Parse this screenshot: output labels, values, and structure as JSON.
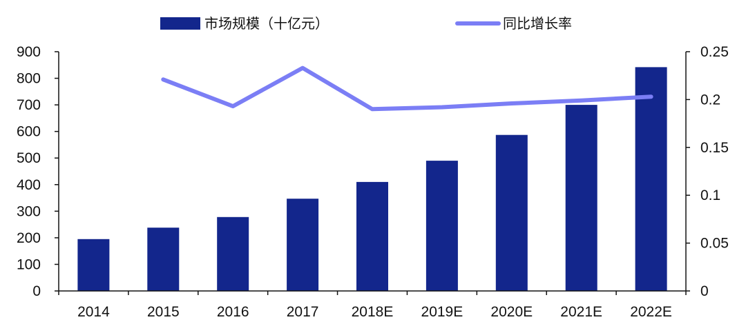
{
  "chart_data": {
    "type": "bar",
    "title": "",
    "xlabel": "",
    "ylabel": "",
    "categories": [
      "2014",
      "2015",
      "2016",
      "2017",
      "2018E",
      "2019E",
      "2020E",
      "2021E",
      "2022E"
    ],
    "series": [
      {
        "name": "市场规模（十亿元）",
        "type": "bar",
        "axis": "left",
        "color": "#13268c",
        "values": [
          195,
          238,
          278,
          347,
          410,
          490,
          587,
          700,
          842
        ]
      },
      {
        "name": "同比增长率",
        "type": "line",
        "axis": "right",
        "color": "#7b7ef5",
        "values": [
          null,
          0.221,
          0.193,
          0.233,
          0.19,
          0.192,
          0.196,
          0.199,
          0.203
        ]
      }
    ],
    "ylim_left": [
      0,
      900
    ],
    "yticks_left": [
      "0",
      "100",
      "200",
      "300",
      "400",
      "500",
      "600",
      "700",
      "800",
      "900"
    ],
    "ylim_right": [
      0,
      0.25
    ],
    "yticks_right": [
      "0",
      "0.05",
      "0.1",
      "0.15",
      "0.2",
      "0.25"
    ],
    "grid": false,
    "legend_position": "top"
  }
}
